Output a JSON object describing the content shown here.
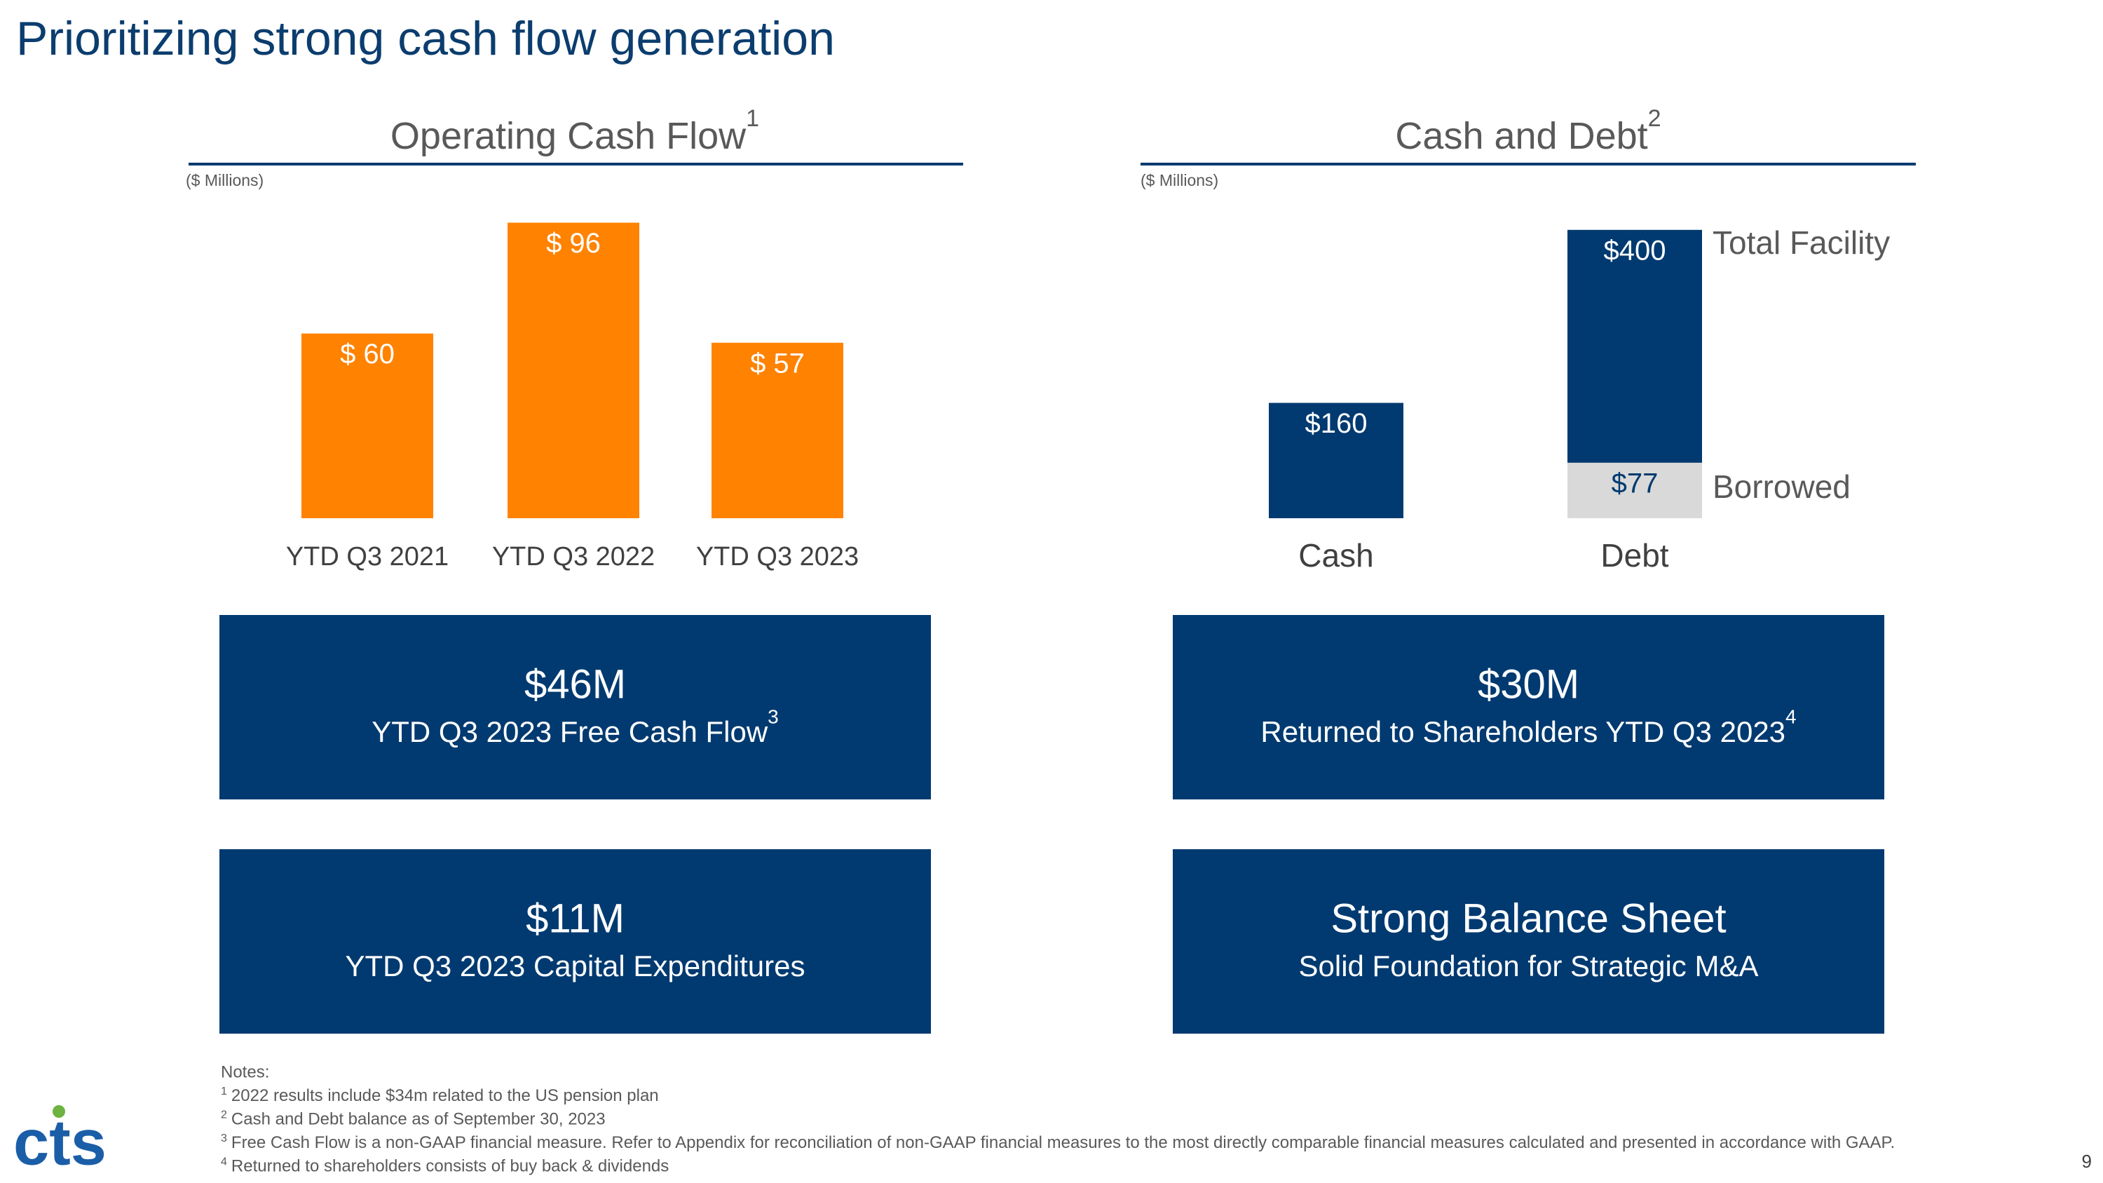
{
  "title": "Prioritizing strong cash flow generation",
  "chart_data": [
    {
      "type": "bar",
      "title": "Operating Cash Flow",
      "title_note": "1",
      "unit_label": "($ Millions)",
      "categories": [
        "YTD Q3 2021",
        "YTD Q3 2022",
        "YTD Q3 2023"
      ],
      "series": [
        {
          "color": "#ff8200",
          "values": [
            60,
            96,
            57
          ],
          "value_labels": [
            "$ 60",
            "$ 96",
            "$ 57"
          ]
        }
      ]
    },
    {
      "type": "bar",
      "title": "Cash and Debt",
      "title_note": "2",
      "unit_label": "($ Millions)",
      "categories": [
        "Cash",
        "Debt"
      ],
      "series": [
        {
          "color": "#003a70",
          "values": [
            160,
            null
          ],
          "value_labels": [
            "$160",
            null
          ]
        },
        {
          "name": "Total Facility",
          "color": "#003a70",
          "values": [
            null,
            400
          ],
          "value_labels": [
            null,
            "$400"
          ]
        },
        {
          "name": "Borrowed",
          "color": "#d9d9d9",
          "values": [
            null,
            77
          ],
          "value_labels": [
            null,
            "$77"
          ]
        }
      ]
    }
  ],
  "boxes": [
    {
      "value": "$46M",
      "label": "YTD Q3 2023 Free Cash Flow",
      "note": "3"
    },
    {
      "value": "$30M",
      "label": "Returned to Shareholders YTD Q3 2023",
      "note": "4"
    },
    {
      "value": "$11M",
      "label": "YTD Q3 2023 Capital Expenditures"
    },
    {
      "value": "Strong Balance Sheet",
      "label": "Solid Foundation for Strategic M&A"
    }
  ],
  "notes": {
    "heading": "Notes:",
    "items": [
      {
        "marker": "1",
        "text": "2022 results include $34m related to the US pension plan"
      },
      {
        "marker": "2",
        "text": "Cash and Debt balance as of September 30, 2023"
      },
      {
        "marker": "3",
        "text": "Free Cash Flow is a non-GAAP financial measure. Refer to Appendix for reconciliation of non-GAAP financial measures to the most directly comparable financial measures calculated and presented in accordance with GAAP."
      },
      {
        "marker": "4",
        "text": "Returned to shareholders consists of buy back & dividends"
      }
    ]
  },
  "logo": "cts",
  "page_number": "9"
}
